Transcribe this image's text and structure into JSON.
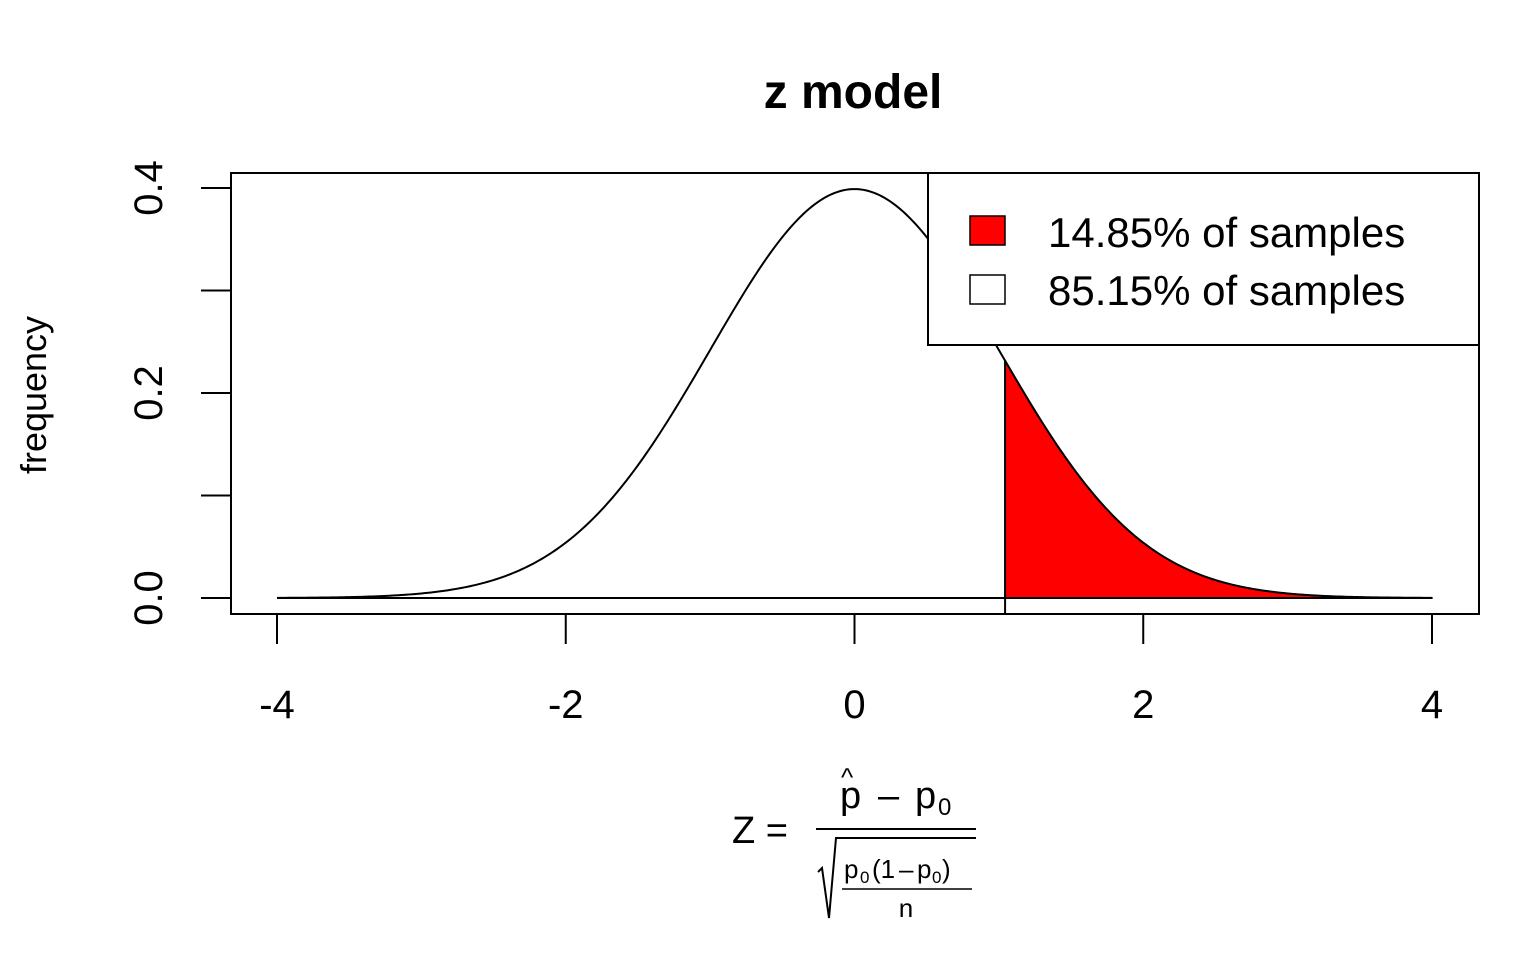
{
  "chart_data": {
    "type": "area",
    "title": "z model",
    "ylabel": "frequency",
    "xlim": [
      -4,
      4
    ],
    "ylim": [
      0,
      0.4
    ],
    "x_ticks": [
      -4,
      -2,
      0,
      2,
      4
    ],
    "x_tick_labels": [
      "-4",
      "-2",
      "0",
      "2",
      "4"
    ],
    "y_ticks": [
      0.0,
      0.1,
      0.2,
      0.3,
      0.4
    ],
    "y_tick_labels": [
      "0.0",
      "0.2",
      "0.4"
    ],
    "y_labeled_ticks": [
      0.0,
      0.2,
      0.4
    ],
    "curve": "standard normal density",
    "shade_from": 1.043,
    "shade_color": "#ff0000",
    "legend_position": "top-right",
    "legend": [
      {
        "label": "14.85% of samples",
        "color": "#ff0000"
      },
      {
        "label": "85.15% of samples",
        "color": "#ffffff"
      }
    ],
    "xlabel": {
      "lhs": "Z =",
      "num_main": "p",
      "num_hat": "^",
      "num_minus": "–",
      "num_p": "p",
      "num_sub": "0",
      "den_p1": "p",
      "den_sub1": "0",
      "den_open": "(1",
      "den_minus": "–",
      "den_p2": "p",
      "den_sub2": "0",
      "den_close": ")",
      "den_n": "n"
    }
  }
}
